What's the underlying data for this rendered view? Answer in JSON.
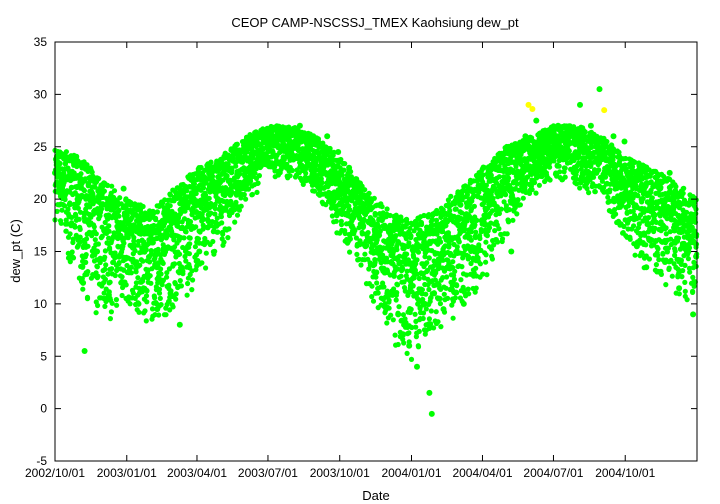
{
  "chart_data": {
    "type": "scatter",
    "title": "CEOP CAMP-NSCSSJ_TMEX Kaohsiung  dew_pt",
    "xlabel": "Date",
    "ylabel": "dew_pt (C)",
    "ylim": [
      -5,
      35
    ],
    "xlim": [
      "2002-10-01",
      "2005-01-01"
    ],
    "y_ticks": [
      -5,
      0,
      5,
      10,
      15,
      20,
      25,
      30,
      35
    ],
    "x_ticks": [
      {
        "date": "2002-10-01",
        "label": "2002/10/01"
      },
      {
        "date": "2003-01-01",
        "label": "2003/01/01"
      },
      {
        "date": "2003-04-01",
        "label": "2003/04/01"
      },
      {
        "date": "2003-07-01",
        "label": "2003/07/01"
      },
      {
        "date": "2003-10-01",
        "label": "2003/10/01"
      },
      {
        "date": "2004-01-01",
        "label": "2004/01/01"
      },
      {
        "date": "2004-04-01",
        "label": "2004/04/01"
      },
      {
        "date": "2004-07-01",
        "label": "2004/07/01"
      },
      {
        "date": "2004-10-01",
        "label": "2004/10/01"
      }
    ],
    "grid": false,
    "legend": "none",
    "colors": {
      "main": "#00ff00",
      "flagged": "#ffff00"
    },
    "series": [
      {
        "color": "#00ff00",
        "points": [
          [
            "2002-10-01",
            22.5
          ],
          [
            "2002-10-05",
            23.5
          ],
          [
            "2002-10-10",
            21.0
          ],
          [
            "2002-10-15",
            24.0
          ],
          [
            "2002-10-20",
            19.5
          ],
          [
            "2002-10-25",
            22.0
          ],
          [
            "2002-10-30",
            20.0
          ],
          [
            "2002-11-03",
            21.5
          ],
          [
            "2002-11-06",
            12.0
          ],
          [
            "2002-11-08",
            5.5
          ],
          [
            "2002-11-12",
            18.0
          ],
          [
            "2002-11-18",
            20.5
          ],
          [
            "2002-11-24",
            15.0
          ],
          [
            "2002-11-28",
            21.0
          ],
          [
            "2002-12-03",
            17.0
          ],
          [
            "2002-12-08",
            10.5
          ],
          [
            "2002-12-12",
            19.0
          ],
          [
            "2002-12-18",
            14.5
          ],
          [
            "2002-12-24",
            16.5
          ],
          [
            "2002-12-28",
            21.0
          ],
          [
            "2003-01-04",
            13.0
          ],
          [
            "2003-01-10",
            17.5
          ],
          [
            "2003-01-16",
            10.0
          ],
          [
            "2003-01-22",
            15.0
          ],
          [
            "2003-01-28",
            12.5
          ],
          [
            "2003-02-03",
            16.0
          ],
          [
            "2003-02-09",
            9.5
          ],
          [
            "2003-02-15",
            14.0
          ],
          [
            "2003-02-21",
            18.0
          ],
          [
            "2003-02-26",
            11.0
          ],
          [
            "2003-03-04",
            16.5
          ],
          [
            "2003-03-10",
            8.0
          ],
          [
            "2003-03-16",
            19.5
          ],
          [
            "2003-03-22",
            13.5
          ],
          [
            "2003-03-28",
            20.0
          ],
          [
            "2003-04-04",
            15.0
          ],
          [
            "2003-04-10",
            21.5
          ],
          [
            "2003-04-16",
            18.5
          ],
          [
            "2003-04-22",
            23.0
          ],
          [
            "2003-04-28",
            20.0
          ],
          [
            "2003-05-05",
            22.5
          ],
          [
            "2003-05-12",
            19.5
          ],
          [
            "2003-05-19",
            24.5
          ],
          [
            "2003-05-26",
            21.5
          ],
          [
            "2003-06-02",
            25.5
          ],
          [
            "2003-06-09",
            23.5
          ],
          [
            "2003-06-16",
            26.0
          ],
          [
            "2003-06-23",
            24.0
          ],
          [
            "2003-06-30",
            25.5
          ],
          [
            "2003-07-07",
            24.5
          ],
          [
            "2003-07-14",
            26.5
          ],
          [
            "2003-07-21",
            24.0
          ],
          [
            "2003-07-28",
            26.0
          ],
          [
            "2003-08-04",
            25.0
          ],
          [
            "2003-08-11",
            27.0
          ],
          [
            "2003-08-18",
            24.5
          ],
          [
            "2003-08-25",
            26.0
          ],
          [
            "2003-09-01",
            25.5
          ],
          [
            "2003-09-08",
            23.5
          ],
          [
            "2003-09-15",
            26.0
          ],
          [
            "2003-09-22",
            22.0
          ],
          [
            "2003-09-29",
            24.5
          ],
          [
            "2003-10-06",
            21.0
          ],
          [
            "2003-10-13",
            23.0
          ],
          [
            "2003-10-20",
            17.0
          ],
          [
            "2003-10-27",
            21.5
          ],
          [
            "2003-11-03",
            15.5
          ],
          [
            "2003-11-10",
            20.0
          ],
          [
            "2003-11-17",
            13.0
          ],
          [
            "2003-11-24",
            18.0
          ],
          [
            "2003-12-01",
            11.0
          ],
          [
            "2003-12-08",
            16.0
          ],
          [
            "2003-12-15",
            9.0
          ],
          [
            "2003-12-22",
            14.5
          ],
          [
            "2003-12-29",
            6.0
          ],
          [
            "2004-01-04",
            12.5
          ],
          [
            "2004-01-08",
            4.0
          ],
          [
            "2004-01-12",
            15.5
          ],
          [
            "2004-01-18",
            10.0
          ],
          [
            "2004-01-24",
            1.5
          ],
          [
            "2004-01-27",
            -0.5
          ],
          [
            "2004-01-30",
            11.0
          ],
          [
            "2004-02-05",
            14.0
          ],
          [
            "2004-02-11",
            9.5
          ],
          [
            "2004-02-17",
            16.5
          ],
          [
            "2004-02-23",
            12.0
          ],
          [
            "2004-03-01",
            17.5
          ],
          [
            "2004-03-08",
            10.0
          ],
          [
            "2004-03-15",
            19.5
          ],
          [
            "2004-03-22",
            15.0
          ],
          [
            "2004-03-29",
            21.0
          ],
          [
            "2004-04-05",
            17.0
          ],
          [
            "2004-04-12",
            22.0
          ],
          [
            "2004-04-19",
            19.0
          ],
          [
            "2004-04-26",
            23.5
          ],
          [
            "2004-05-03",
            21.0
          ],
          [
            "2004-05-08",
            15.0
          ],
          [
            "2004-05-12",
            24.5
          ],
          [
            "2004-05-19",
            22.5
          ],
          [
            "2004-05-26",
            26.0
          ],
          [
            "2004-06-02",
            24.0
          ],
          [
            "2004-06-09",
            27.5
          ],
          [
            "2004-06-16",
            23.5
          ],
          [
            "2004-06-23",
            26.0
          ],
          [
            "2004-06-30",
            25.0
          ],
          [
            "2004-07-07",
            27.0
          ],
          [
            "2004-07-14",
            24.0
          ],
          [
            "2004-07-21",
            26.5
          ],
          [
            "2004-07-28",
            23.0
          ],
          [
            "2004-08-04",
            29.0
          ],
          [
            "2004-08-11",
            24.5
          ],
          [
            "2004-08-18",
            27.0
          ],
          [
            "2004-08-25",
            22.5
          ],
          [
            "2004-08-29",
            30.5
          ],
          [
            "2004-09-02",
            25.0
          ],
          [
            "2004-09-09",
            23.0
          ],
          [
            "2004-09-16",
            26.0
          ],
          [
            "2004-09-23",
            21.5
          ],
          [
            "2004-09-30",
            25.5
          ],
          [
            "2004-10-05",
            18.0
          ],
          [
            "2004-10-10",
            22.0
          ],
          [
            "2004-10-16",
            15.5
          ],
          [
            "2004-10-22",
            20.0
          ],
          [
            "2004-10-28",
            13.5
          ],
          [
            "2004-11-03",
            19.5
          ],
          [
            "2004-11-09",
            16.0
          ],
          [
            "2004-11-15",
            21.5
          ],
          [
            "2004-11-21",
            14.0
          ],
          [
            "2004-11-27",
            22.5
          ],
          [
            "2004-12-03",
            17.0
          ],
          [
            "2004-12-09",
            11.5
          ],
          [
            "2004-12-15",
            18.5
          ],
          [
            "2004-12-21",
            15.0
          ],
          [
            "2004-12-27",
            9.0
          ],
          [
            "2004-12-31",
            14.5
          ]
        ]
      },
      {
        "color": "#ffff00",
        "points": [
          [
            "2004-05-30",
            29.0
          ],
          [
            "2004-06-04",
            28.6
          ],
          [
            "2004-09-04",
            28.5
          ]
        ]
      }
    ],
    "envelope": {
      "x": [
        "2002-10-01",
        "2002-11-01",
        "2002-12-01",
        "2003-01-01",
        "2003-02-01",
        "2003-03-01",
        "2003-04-01",
        "2003-05-01",
        "2003-06-01",
        "2003-07-01",
        "2003-08-01",
        "2003-09-01",
        "2003-10-01",
        "2003-11-01",
        "2003-12-01",
        "2004-01-01",
        "2004-02-01",
        "2004-03-01",
        "2004-04-01",
        "2004-05-01",
        "2004-06-01",
        "2004-07-01",
        "2004-08-01",
        "2004-09-01",
        "2004-10-01",
        "2004-11-01",
        "2004-12-01",
        "2004-12-31"
      ],
      "high": [
        25,
        24,
        22,
        20,
        19,
        21,
        23,
        24,
        26,
        27,
        27,
        26,
        24,
        21,
        19,
        18,
        19,
        21,
        23,
        25,
        26,
        27,
        27,
        26,
        24,
        23,
        22,
        20
      ],
      "low": [
        18,
        11,
        8,
        9,
        8,
        9,
        12,
        15,
        19,
        22,
        22,
        20,
        16,
        12,
        7,
        4,
        7,
        9,
        12,
        16,
        20,
        22,
        21,
        20,
        15,
        13,
        11,
        9
      ]
    }
  }
}
